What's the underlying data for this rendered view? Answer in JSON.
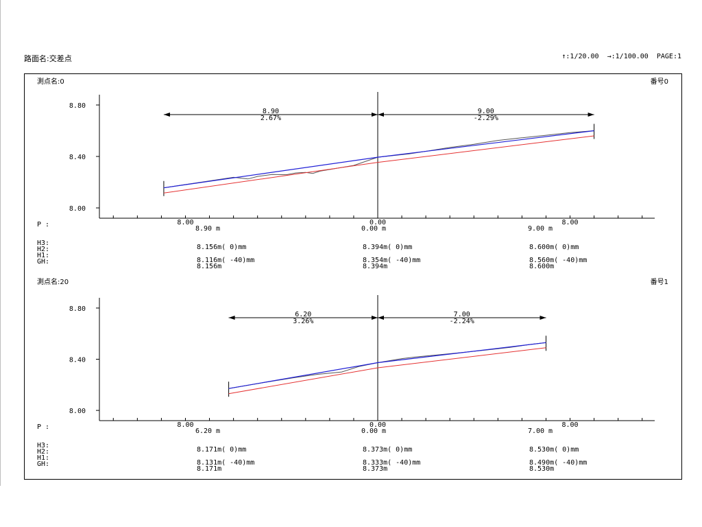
{
  "header": {
    "title": "路面名:交差点",
    "scale_info": "↑:1/20.00  →:1/100.00  PAGE:1"
  },
  "chart_data": [
    {
      "type": "line",
      "section_name": "測点名:0",
      "section_number": "番号0",
      "ylim": [
        7.92,
        8.88
      ],
      "yticks": [
        "8.80",
        "8.40",
        "8.00"
      ],
      "xlim": [
        -11.4,
        11.7
      ],
      "x_tick_labels": [
        {
          "x": -8.0,
          "label": "8.00"
        },
        {
          "x": 0.0,
          "label": "0.00"
        },
        {
          "x": 8.0,
          "label": "8.00"
        }
      ],
      "extent_left": 8.9,
      "extent_right": 9.0,
      "dim_left": {
        "distance": "8.90",
        "slope": "2.67%"
      },
      "dim_right": {
        "distance": "9.00",
        "slope": "-2.29%"
      },
      "series": [
        {
          "color": "#1f1fd6",
          "x": [
            -8.9,
            0.0,
            9.0
          ],
          "y": [
            8.156,
            8.394,
            8.6
          ]
        },
        {
          "color": "#e53030",
          "x": [
            -8.9,
            0.0,
            9.0
          ],
          "y": [
            8.116,
            8.354,
            8.56
          ]
        },
        {
          "color": "#555555",
          "x": [
            -8.9,
            -6.0,
            -5.4,
            -5.0,
            -4.4,
            -3.8,
            -3.4,
            -3.0,
            -2.7,
            -2.4,
            -1.0,
            0.0,
            1.3,
            2.0,
            3.0,
            4.0,
            5.0,
            6.0,
            7.0,
            8.0,
            9.0
          ],
          "y": [
            8.156,
            8.238,
            8.225,
            8.245,
            8.26,
            8.258,
            8.272,
            8.276,
            8.268,
            8.286,
            8.33,
            8.394,
            8.42,
            8.44,
            8.47,
            8.495,
            8.525,
            8.545,
            8.565,
            8.585,
            8.6
          ]
        }
      ],
      "rows": {
        "p_label": "P :",
        "h3": "H3:",
        "h2": "H2:",
        "h1": "H1:",
        "gh": "GH:",
        "left": {
          "dist": "8.90 m",
          "h3": "8.156m(   0)mm",
          "h1": "8.116m(  -40)mm",
          "gh": "8.156m"
        },
        "center": {
          "dist": "0.00 m",
          "h3": "8.394m(   0)mm",
          "h1": "8.354m(  -40)mm",
          "gh": "8.394m"
        },
        "right": {
          "dist": "9.00 m",
          "h3": "8.600m(   0)mm",
          "h1": "8.560m(  -40)mm",
          "gh": "8.600m"
        }
      }
    },
    {
      "type": "line",
      "section_name": "測点名:20",
      "section_number": "番号1",
      "ylim": [
        7.92,
        8.88
      ],
      "yticks": [
        "8.80",
        "8.40",
        "8.00"
      ],
      "xlim": [
        -11.4,
        11.7
      ],
      "x_tick_labels": [
        {
          "x": -8.0,
          "label": "8.00"
        },
        {
          "x": 0.0,
          "label": "0.00"
        },
        {
          "x": 8.0,
          "label": "8.00"
        }
      ],
      "extent_left": 6.2,
      "extent_right": 7.0,
      "dim_left": {
        "distance": "6.20",
        "slope": "3.26%"
      },
      "dim_right": {
        "distance": "7.00",
        "slope": "-2.24%"
      },
      "series": [
        {
          "color": "#1f1fd6",
          "x": [
            -6.2,
            0.0,
            7.0
          ],
          "y": [
            8.171,
            8.373,
            8.53
          ]
        },
        {
          "color": "#e53030",
          "x": [
            -6.2,
            0.0,
            7.0
          ],
          "y": [
            8.131,
            8.333,
            8.49
          ]
        },
        {
          "color": "#555555",
          "x": [
            -6.2,
            -4.5,
            -3.5,
            -2.5,
            -1.5,
            -0.8,
            0.0,
            1.0,
            1.6,
            2.4,
            3.5,
            4.5,
            5.5,
            6.3,
            7.0
          ],
          "y": [
            8.171,
            8.225,
            8.255,
            8.282,
            8.3,
            8.342,
            8.373,
            8.405,
            8.418,
            8.432,
            8.452,
            8.472,
            8.492,
            8.515,
            8.53
          ]
        }
      ],
      "rows": {
        "p_label": "P :",
        "h3": "H3:",
        "h2": "H2:",
        "h1": "H1:",
        "gh": "GH:",
        "left": {
          "dist": "6.20 m",
          "h3": "8.171m(   0)mm",
          "h1": "8.131m(  -40)mm",
          "gh": "8.171m"
        },
        "center": {
          "dist": "0.00 m",
          "h3": "8.373m(   0)mm",
          "h1": "8.333m(  -40)mm",
          "gh": "8.373m"
        },
        "right": {
          "dist": "7.00 m",
          "h3": "8.530m(   0)mm",
          "h1": "8.490m(  -40)mm",
          "gh": "8.530m"
        }
      }
    }
  ]
}
